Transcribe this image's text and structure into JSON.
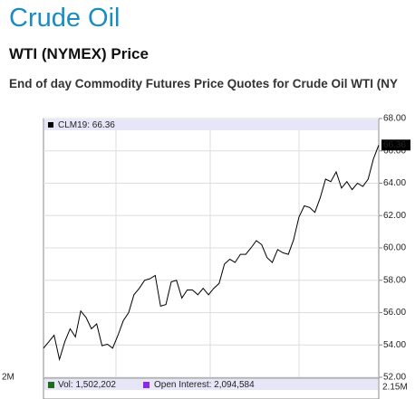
{
  "header": {
    "title": "Crude Oil",
    "subtitle": "WTI (NYMEX) Price",
    "description": "End of day Commodity Futures Price Quotes for Crude Oil WTI (NY"
  },
  "chart_data": {
    "type": "line",
    "legend_label": "CLM19: 66.36",
    "series": [
      {
        "name": "CLM19",
        "color": "#000000",
        "values": [
          53.8,
          54.2,
          54.6,
          53.1,
          54.2,
          55.0,
          54.5,
          56.1,
          55.7,
          55.0,
          55.3,
          53.95,
          54.05,
          53.8,
          54.6,
          55.5,
          56.0,
          57.1,
          57.5,
          58.0,
          58.1,
          58.3,
          56.4,
          56.5,
          57.9,
          58.0,
          56.9,
          57.4,
          57.4,
          57.1,
          57.5,
          57.1,
          57.5,
          57.8,
          59.0,
          59.3,
          59.1,
          59.6,
          59.6,
          60.0,
          60.45,
          60.2,
          59.4,
          59.1,
          59.9,
          59.7,
          59.6,
          60.5,
          61.9,
          62.6,
          62.5,
          62.2,
          63.1,
          64.25,
          64.1,
          64.7,
          63.7,
          64.1,
          63.6,
          64.0,
          63.8,
          64.25,
          65.5,
          66.36
        ]
      }
    ],
    "ylim": [
      52,
      68
    ],
    "yticks": [
      {
        "value": 52,
        "label": "52.00"
      },
      {
        "value": 54,
        "label": "54.00"
      },
      {
        "value": 56,
        "label": "56.00"
      },
      {
        "value": 58,
        "label": "58.00"
      },
      {
        "value": 60,
        "label": "60.00"
      },
      {
        "value": 62,
        "label": "62.00"
      },
      {
        "value": 64,
        "label": "64.00"
      },
      {
        "value": 66,
        "label": "66.00"
      },
      {
        "value": 68,
        "label": "68.00"
      }
    ],
    "grid": true
  },
  "volume_panel": {
    "left_label": "2M",
    "right_label": "2.15M",
    "volume_legend": "Vol: 1,502,202",
    "oi_legend": "Open Interest: 2,094,584",
    "volume_color": "#1e6b1e",
    "oi_color": "#8a2be2"
  }
}
